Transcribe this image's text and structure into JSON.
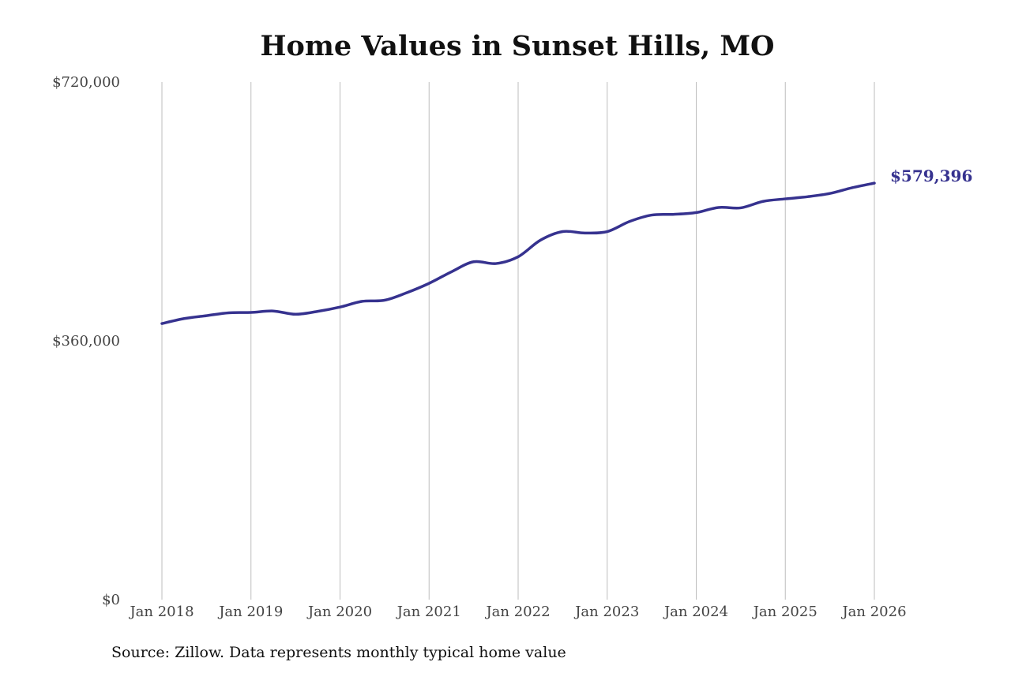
{
  "chart_data": {
    "type": "line",
    "title": "Home Values in Sunset Hills, MO",
    "xlabel": "",
    "ylabel": "",
    "ylim": [
      0,
      720000
    ],
    "y_ticks": [
      {
        "value": 0,
        "label": "$0"
      },
      {
        "value": 360000,
        "label": "$360,000"
      },
      {
        "value": 720000,
        "label": "$720,000"
      }
    ],
    "x_ticks": [
      {
        "value": "2018-01",
        "label": "Jan 2018"
      },
      {
        "value": "2019-01",
        "label": "Jan 2019"
      },
      {
        "value": "2020-01",
        "label": "Jan 2020"
      },
      {
        "value": "2021-01",
        "label": "Jan 2021"
      },
      {
        "value": "2022-01",
        "label": "Jan 2022"
      },
      {
        "value": "2023-01",
        "label": "Jan 2023"
      },
      {
        "value": "2024-01",
        "label": "Jan 2024"
      },
      {
        "value": "2025-01",
        "label": "Jan 2025"
      },
      {
        "value": "2026-01",
        "label": "Jan 2026"
      }
    ],
    "grid": {
      "vertical": true,
      "horizontal": false
    },
    "series": [
      {
        "color": "#36328f",
        "points": [
          {
            "x": "2018-01",
            "y": 384000
          },
          {
            "x": "2018-04",
            "y": 391000
          },
          {
            "x": "2018-07",
            "y": 395000
          },
          {
            "x": "2018-10",
            "y": 399000
          },
          {
            "x": "2019-01",
            "y": 399500
          },
          {
            "x": "2019-04",
            "y": 401500
          },
          {
            "x": "2019-07",
            "y": 397000
          },
          {
            "x": "2019-10",
            "y": 401000
          },
          {
            "x": "2020-01",
            "y": 407000
          },
          {
            "x": "2020-04",
            "y": 415000
          },
          {
            "x": "2020-07",
            "y": 416500
          },
          {
            "x": "2020-10",
            "y": 427000
          },
          {
            "x": "2021-01",
            "y": 440000
          },
          {
            "x": "2021-04",
            "y": 456000
          },
          {
            "x": "2021-07",
            "y": 470000
          },
          {
            "x": "2021-10",
            "y": 467500
          },
          {
            "x": "2022-01",
            "y": 477000
          },
          {
            "x": "2022-04",
            "y": 500000
          },
          {
            "x": "2022-07",
            "y": 512000
          },
          {
            "x": "2022-10",
            "y": 510000
          },
          {
            "x": "2023-01",
            "y": 512000
          },
          {
            "x": "2023-04",
            "y": 526000
          },
          {
            "x": "2023-07",
            "y": 535000
          },
          {
            "x": "2023-10",
            "y": 536000
          },
          {
            "x": "2024-01",
            "y": 538500
          },
          {
            "x": "2024-04",
            "y": 545500
          },
          {
            "x": "2024-07",
            "y": 545000
          },
          {
            "x": "2024-10",
            "y": 554000
          },
          {
            "x": "2025-01",
            "y": 557500
          },
          {
            "x": "2025-04",
            "y": 560500
          },
          {
            "x": "2025-07",
            "y": 565000
          },
          {
            "x": "2025-10",
            "y": 573000
          },
          {
            "x": "2026-01",
            "y": 579396
          }
        ]
      }
    ],
    "end_label": "$579,396",
    "source": "Source: Zillow. Data represents monthly typical home value"
  }
}
